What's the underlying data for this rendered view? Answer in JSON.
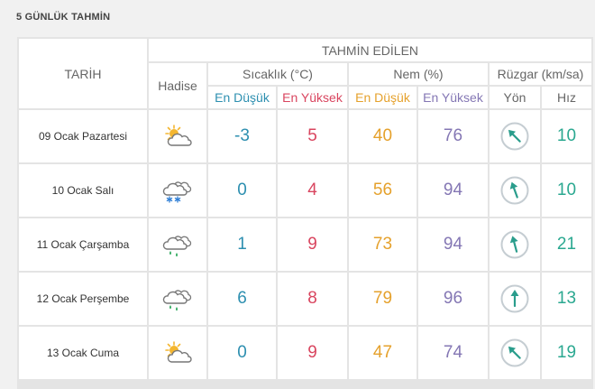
{
  "page_title": "5 GÜNLÜK TAHMİN",
  "headers": {
    "date": "TARİH",
    "forecast": "TAHMİN EDİLEN",
    "event": "Hadise",
    "temp": "Sıcaklık (°C)",
    "humidity": "Nem (%)",
    "wind": "Rüzgar (km/sa)",
    "min": "En Düşük",
    "max": "En Yüksek",
    "direction": "Yön",
    "speed": "Hız"
  },
  "colors": {
    "min": "#2d8fb0",
    "max": "#d9455f",
    "hum_min": "#e5a12c",
    "hum_max": "#8477b4",
    "wind": "#2aa890"
  },
  "rows": [
    {
      "date": "09 Ocak Pazartesi",
      "icon": "partly-sunny-icon",
      "temp_min": "-3",
      "temp_max": "5",
      "hum_min": "40",
      "hum_max": "76",
      "wind_dir_deg": 315,
      "wind_speed": "10"
    },
    {
      "date": "10 Ocak Salı",
      "icon": "snow-cloud-icon",
      "temp_min": "0",
      "temp_max": "4",
      "hum_min": "56",
      "hum_max": "94",
      "wind_dir_deg": 340,
      "wind_speed": "10"
    },
    {
      "date": "11 Ocak Çarşamba",
      "icon": "rain-cloud-icon",
      "temp_min": "1",
      "temp_max": "9",
      "hum_min": "73",
      "hum_max": "94",
      "wind_dir_deg": 345,
      "wind_speed": "21"
    },
    {
      "date": "12 Ocak Perşembe",
      "icon": "rain-cloud-icon",
      "temp_min": "6",
      "temp_max": "8",
      "hum_min": "79",
      "hum_max": "96",
      "wind_dir_deg": 0,
      "wind_speed": "13"
    },
    {
      "date": "13 Ocak Cuma",
      "icon": "partly-sunny-icon",
      "temp_min": "0",
      "temp_max": "9",
      "hum_min": "47",
      "hum_max": "74",
      "wind_dir_deg": 315,
      "wind_speed": "19"
    }
  ]
}
